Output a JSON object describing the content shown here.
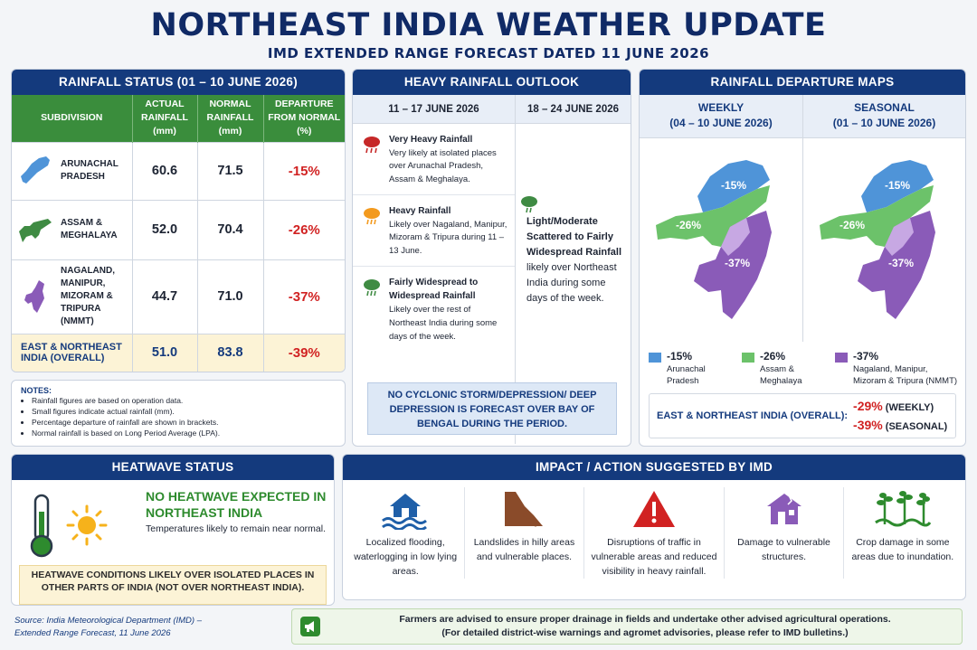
{
  "header": {
    "title": "NORTHEAST INDIA WEATHER UPDATE",
    "subtitle": "IMD EXTENDED RANGE FORECAST DATED 11 JUNE 2026"
  },
  "rainfall_status": {
    "title": "RAINFALL STATUS (01 – 10 JUNE 2026)",
    "columns": [
      "SUBDIVISION",
      "ACTUAL RAINFALL (mm)",
      "NORMAL RAINFALL (mm)",
      "DEPARTURE FROM NORMAL (%)"
    ],
    "rows": [
      {
        "subdivision": "ARUNACHAL PRADESH",
        "actual": "60.6",
        "normal": "71.5",
        "departure": "-15%",
        "color": "#4f94d8"
      },
      {
        "subdivision": "ASSAM & MEGHALAYA",
        "actual": "52.0",
        "normal": "70.4",
        "departure": "-26%",
        "color": "#3f8b43"
      },
      {
        "subdivision": "NAGALAND, MANIPUR, MIZORAM & TRIPURA (NMMT)",
        "actual": "44.7",
        "normal": "71.0",
        "departure": "-37%",
        "color": "#8a5bb8"
      }
    ],
    "total": {
      "subdivision": "EAST & NORTHEAST INDIA (OVERALL)",
      "actual": "51.0",
      "normal": "83.8",
      "departure": "-39%"
    }
  },
  "notes": {
    "title": "NOTES:",
    "items": [
      "Rainfall figures are based on operation data.",
      "Small figures indicate actual rainfall (mm).",
      "Percentage departure of rainfall are shown in brackets.",
      "Normal rainfall is based on Long Period Average  (LPA)."
    ]
  },
  "outlook": {
    "title": "HEAVY RAINFALL OUTLOOK",
    "week1_label": "11 – 17 JUNE 2026",
    "week2_label": "18 – 24 JUNE 2026",
    "week1_items": [
      {
        "icon": "very-heavy-rain-icon",
        "heading": "Very Heavy Rainfall",
        "text": "Very likely at isolated places over Arunachal Pradesh, Assam & Meghalaya.",
        "color": "#c62828"
      },
      {
        "icon": "heavy-rain-icon",
        "heading": "Heavy Rainfall",
        "text": "Likely over Nagaland, Manipur, Mizoram & Tripura during 11 – 13 June.",
        "color": "#f39a1e"
      },
      {
        "icon": "widespread-rain-icon",
        "heading": "Fairly Widespread to Widespread Rainfall",
        "text": "Likely over the rest of Northeast India during some days of the week.",
        "color": "#3f8b43"
      }
    ],
    "week2_heading": "Light/Moderate Scattered to Fairly Widespread Rainfall",
    "week2_text": "likely over Northeast India during some days of the week.",
    "cyclone_note": "NO CYCLONIC STORM/DEPRESSION/ DEEP DEPRESSION IS FORECAST OVER BAY OF BENGAL DURING THE PERIOD."
  },
  "maps": {
    "title": "RAINFALL DEPARTURE MAPS",
    "weekly_label": "WEEKLY",
    "weekly_range": "(04 – 10 JUNE 2026)",
    "seasonal_label": "SEASONAL",
    "seasonal_range": "(01 – 10 JUNE 2026)",
    "region_values": {
      "arunachal": "-15%",
      "assam": "-26%",
      "nmmt": "-37%"
    },
    "legend": [
      {
        "pct": "-15%",
        "label": "Arunachal Pradesh",
        "color": "#4f94d8"
      },
      {
        "pct": "-26%",
        "label": "Assam & Meghalaya",
        "color": "#6cc26a"
      },
      {
        "pct": "-37%",
        "label": "Nagaland, Manipur, Mizoram & Tripura (NMMT)",
        "color": "#8a5bb8"
      }
    ],
    "overall_label": "EAST & NORTHEAST INDIA (OVERALL):",
    "overall_weekly": "-29%",
    "overall_weekly_tag": "(WEEKLY)",
    "overall_seasonal": "-39%",
    "overall_seasonal_tag": "(SEASONAL)"
  },
  "heatwave": {
    "title": "HEATWAVE STATUS",
    "main": "NO HEATWAVE EXPECTED IN NORTHEAST INDIA",
    "sub": "Temperatures likely to remain near normal.",
    "warning": "HEATWAVE CONDITIONS LIKELY OVER ISOLATED PLACES IN OTHER PARTS OF INDIA (NOT OVER NORTHEAST INDIA)."
  },
  "impact": {
    "title": "IMPACT / ACTION SUGGESTED BY IMD",
    "items": [
      {
        "icon": "flood-icon",
        "text": "Localized flooding, waterlogging in low lying areas."
      },
      {
        "icon": "landslide-icon",
        "text": "Landslides in hilly areas and vulnerable places."
      },
      {
        "icon": "warning-icon",
        "text": "Disruptions of traffic in vulnerable areas and reduced visibility in heavy rainfall."
      },
      {
        "icon": "damaged-house-icon",
        "text": "Damage to vulnerable structures."
      },
      {
        "icon": "crop-icon",
        "text": "Crop damage in some areas due to inundation."
      }
    ]
  },
  "advice": {
    "line1": "Farmers are advised to ensure proper drainage in fields and undertake other advised agricultural operations.",
    "line2": "(For detailed district-wise warnings and agromet advisories, please refer to IMD bulletins.)"
  },
  "source": {
    "line1": "Source: India Meteorological Department (IMD) –",
    "line2": "Extended Range Forecast, 11 June 2026"
  }
}
